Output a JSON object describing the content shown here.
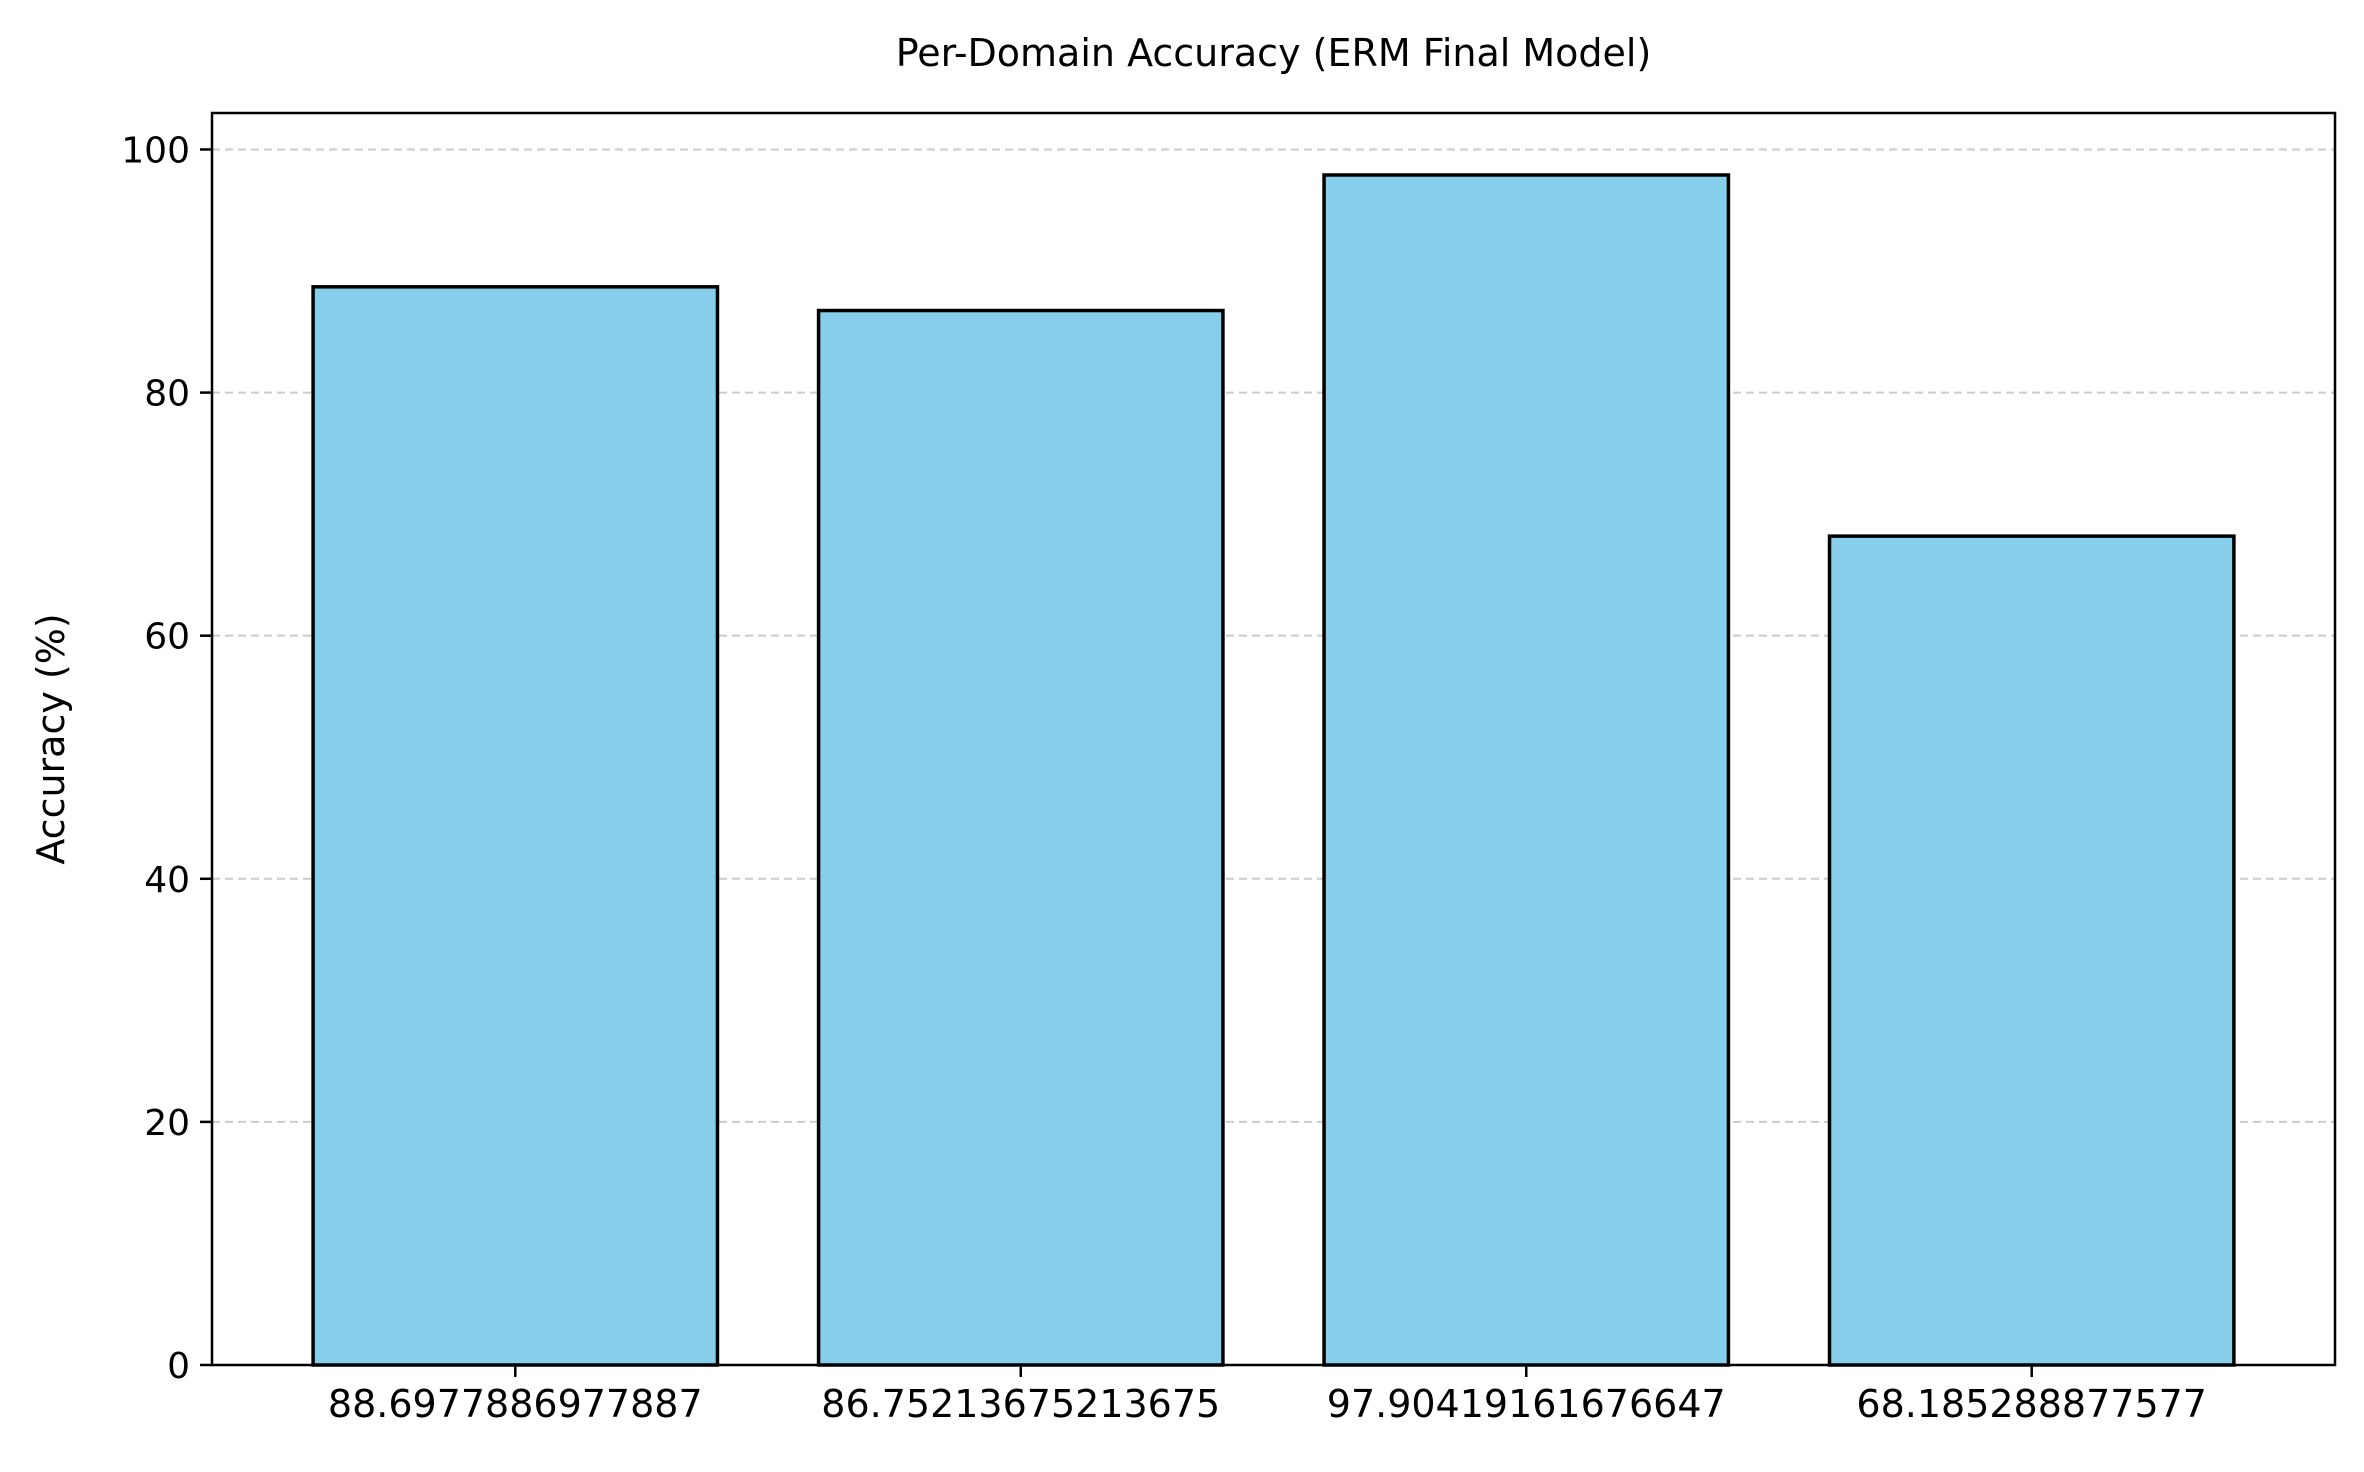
{
  "chart_data": {
    "type": "bar",
    "title": "Per-Domain Accuracy (ERM Final Model)",
    "xlabel": "",
    "ylabel": "Accuracy (%)",
    "categories": [
      "88.6977886977887",
      "86.75213675213675",
      "97.90419161676647",
      "68.185288877577"
    ],
    "values": [
      88.7,
      86.75,
      97.9,
      68.19
    ],
    "ylim": [
      0,
      103
    ],
    "yticks": [
      0,
      20,
      40,
      60,
      80,
      100
    ],
    "grid": {
      "y": true,
      "x": false,
      "style": "dashed"
    },
    "legend": "none",
    "colors": {
      "bar_fill": "#87CEEB",
      "bar_edge": "#000000",
      "grid": "#cccccc",
      "axis": "#000000"
    }
  }
}
